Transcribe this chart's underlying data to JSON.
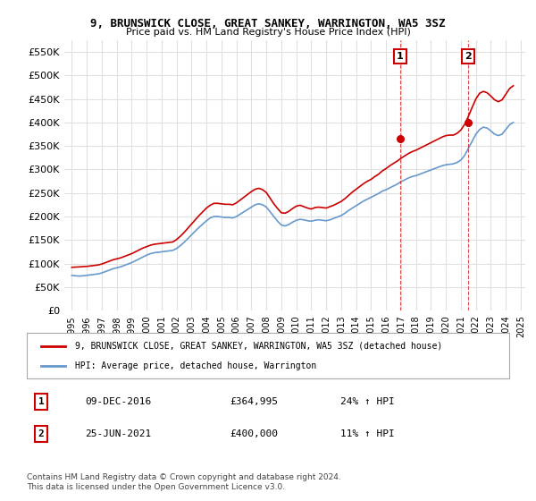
{
  "title": "9, BRUNSWICK CLOSE, GREAT SANKEY, WARRINGTON, WA5 3SZ",
  "subtitle": "Price paid vs. HM Land Registry's House Price Index (HPI)",
  "ylabel": "",
  "xlabel": "",
  "ylim": [
    0,
    575000
  ],
  "yticks": [
    0,
    50000,
    100000,
    150000,
    200000,
    250000,
    300000,
    350000,
    400000,
    450000,
    500000,
    550000
  ],
  "ytick_labels": [
    "£0",
    "£50K",
    "£100K",
    "£150K",
    "£200K",
    "£250K",
    "£300K",
    "£350K",
    "£400K",
    "£450K",
    "£500K",
    "£550K"
  ],
  "xtick_years": [
    1995,
    1996,
    1997,
    1998,
    1999,
    2000,
    2001,
    2002,
    2003,
    2004,
    2005,
    2006,
    2007,
    2008,
    2009,
    2010,
    2011,
    2012,
    2013,
    2014,
    2015,
    2016,
    2017,
    2018,
    2019,
    2020,
    2021,
    2022,
    2023,
    2024,
    2025
  ],
  "background_color": "#ffffff",
  "grid_color": "#e0e0e0",
  "property_color": "#cc0000",
  "hpi_color": "#6699cc",
  "transaction1_x": 2016.93,
  "transaction1_y": 364995,
  "transaction2_x": 2021.48,
  "transaction2_y": 400000,
  "legend_property": "9, BRUNSWICK CLOSE, GREAT SANKEY, WARRINGTON, WA5 3SZ (detached house)",
  "legend_hpi": "HPI: Average price, detached house, Warrington",
  "ann1_label": "1",
  "ann1_date": "09-DEC-2016",
  "ann1_price": "£364,995",
  "ann1_hpi": "24% ↑ HPI",
  "ann2_label": "2",
  "ann2_date": "25-JUN-2021",
  "ann2_price": "£400,000",
  "ann2_hpi": "11% ↑ HPI",
  "footer": "Contains HM Land Registry data © Crown copyright and database right 2024.\nThis data is licensed under the Open Government Licence v3.0.",
  "hpi_data_x": [
    1995.0,
    1995.25,
    1995.5,
    1995.75,
    1996.0,
    1996.25,
    1996.5,
    1996.75,
    1997.0,
    1997.25,
    1997.5,
    1997.75,
    1998.0,
    1998.25,
    1998.5,
    1998.75,
    1999.0,
    1999.25,
    1999.5,
    1999.75,
    2000.0,
    2000.25,
    2000.5,
    2000.75,
    2001.0,
    2001.25,
    2001.5,
    2001.75,
    2002.0,
    2002.25,
    2002.5,
    2002.75,
    2003.0,
    2003.25,
    2003.5,
    2003.75,
    2004.0,
    2004.25,
    2004.5,
    2004.75,
    2005.0,
    2005.25,
    2005.5,
    2005.75,
    2006.0,
    2006.25,
    2006.5,
    2006.75,
    2007.0,
    2007.25,
    2007.5,
    2007.75,
    2008.0,
    2008.25,
    2008.5,
    2008.75,
    2009.0,
    2009.25,
    2009.5,
    2009.75,
    2010.0,
    2010.25,
    2010.5,
    2010.75,
    2011.0,
    2011.25,
    2011.5,
    2011.75,
    2012.0,
    2012.25,
    2012.5,
    2012.75,
    2013.0,
    2013.25,
    2013.5,
    2013.75,
    2014.0,
    2014.25,
    2014.5,
    2014.75,
    2015.0,
    2015.25,
    2015.5,
    2015.75,
    2016.0,
    2016.25,
    2016.5,
    2016.75,
    2017.0,
    2017.25,
    2017.5,
    2017.75,
    2018.0,
    2018.25,
    2018.5,
    2018.75,
    2019.0,
    2019.25,
    2019.5,
    2019.75,
    2020.0,
    2020.25,
    2020.5,
    2020.75,
    2021.0,
    2021.25,
    2021.5,
    2021.75,
    2022.0,
    2022.25,
    2022.5,
    2022.75,
    2023.0,
    2023.25,
    2023.5,
    2023.75,
    2024.0,
    2024.25,
    2024.5
  ],
  "hpi_data_y": [
    75000,
    74000,
    73500,
    74000,
    75000,
    76000,
    77000,
    78000,
    80000,
    83000,
    86000,
    89000,
    91000,
    93000,
    96000,
    99000,
    102000,
    106000,
    110000,
    114000,
    118000,
    121000,
    123000,
    124000,
    125000,
    126000,
    127000,
    128000,
    132000,
    138000,
    145000,
    153000,
    161000,
    169000,
    177000,
    184000,
    191000,
    197000,
    200000,
    200000,
    199000,
    198000,
    198000,
    197000,
    200000,
    205000,
    210000,
    215000,
    220000,
    225000,
    227000,
    225000,
    220000,
    210000,
    200000,
    190000,
    182000,
    180000,
    183000,
    188000,
    192000,
    194000,
    193000,
    191000,
    190000,
    192000,
    193000,
    192000,
    191000,
    193000,
    196000,
    199000,
    202000,
    207000,
    213000,
    218000,
    223000,
    228000,
    233000,
    237000,
    241000,
    245000,
    249000,
    254000,
    257000,
    261000,
    265000,
    269000,
    274000,
    278000,
    282000,
    285000,
    287000,
    290000,
    293000,
    296000,
    299000,
    302000,
    305000,
    308000,
    310000,
    311000,
    312000,
    315000,
    320000,
    330000,
    345000,
    360000,
    375000,
    385000,
    390000,
    388000,
    382000,
    375000,
    372000,
    375000,
    385000,
    395000,
    400000
  ],
  "property_data_x": [
    1995.0,
    1995.25,
    1995.5,
    1995.75,
    1996.0,
    1996.25,
    1996.5,
    1996.75,
    1997.0,
    1997.25,
    1997.5,
    1997.75,
    1998.0,
    1998.25,
    1998.5,
    1998.75,
    1999.0,
    1999.25,
    1999.5,
    1999.75,
    2000.0,
    2000.25,
    2000.5,
    2000.75,
    2001.0,
    2001.25,
    2001.5,
    2001.75,
    2002.0,
    2002.25,
    2002.5,
    2002.75,
    2003.0,
    2003.25,
    2003.5,
    2003.75,
    2004.0,
    2004.25,
    2004.5,
    2004.75,
    2005.0,
    2005.25,
    2005.5,
    2005.75,
    2006.0,
    2006.25,
    2006.5,
    2006.75,
    2007.0,
    2007.25,
    2007.5,
    2007.75,
    2008.0,
    2008.25,
    2008.5,
    2008.75,
    2009.0,
    2009.25,
    2009.5,
    2009.75,
    2010.0,
    2010.25,
    2010.5,
    2010.75,
    2011.0,
    2011.25,
    2011.5,
    2011.75,
    2012.0,
    2012.25,
    2012.5,
    2012.75,
    2013.0,
    2013.25,
    2013.5,
    2013.75,
    2014.0,
    2014.25,
    2014.5,
    2014.75,
    2015.0,
    2015.25,
    2015.5,
    2015.75,
    2016.0,
    2016.25,
    2016.5,
    2016.75,
    2017.0,
    2017.25,
    2017.5,
    2017.75,
    2018.0,
    2018.25,
    2018.5,
    2018.75,
    2019.0,
    2019.25,
    2019.5,
    2019.75,
    2020.0,
    2020.25,
    2020.5,
    2020.75,
    2021.0,
    2021.25,
    2021.5,
    2021.75,
    2022.0,
    2022.25,
    2022.5,
    2022.75,
    2023.0,
    2023.25,
    2023.5,
    2023.75,
    2024.0,
    2024.25,
    2024.5
  ],
  "property_data_y": [
    92000,
    92500,
    93000,
    93500,
    94000,
    95000,
    96000,
    97000,
    99000,
    102000,
    105000,
    108000,
    110000,
    112000,
    115000,
    118000,
    121000,
    125000,
    129000,
    133000,
    136000,
    139000,
    141000,
    142000,
    143000,
    144000,
    145000,
    146000,
    151000,
    158000,
    166000,
    175000,
    184000,
    193000,
    202000,
    210000,
    218000,
    224000,
    228000,
    228000,
    227000,
    226000,
    226000,
    225000,
    229000,
    235000,
    241000,
    247000,
    253000,
    258000,
    260000,
    257000,
    251000,
    239000,
    227000,
    217000,
    208000,
    207000,
    211000,
    217000,
    222000,
    224000,
    221000,
    218000,
    216000,
    219000,
    220000,
    219000,
    218000,
    221000,
    224000,
    228000,
    232000,
    238000,
    245000,
    252000,
    258000,
    264000,
    270000,
    275000,
    279000,
    285000,
    290000,
    297000,
    302000,
    308000,
    313000,
    318000,
    324000,
    329000,
    334000,
    338000,
    341000,
    345000,
    349000,
    353000,
    357000,
    361000,
    365000,
    369000,
    372000,
    373000,
    373000,
    377000,
    384000,
    396000,
    413000,
    432000,
    450000,
    462000,
    466000,
    463000,
    456000,
    448000,
    444000,
    448000,
    460000,
    472000,
    478000
  ]
}
